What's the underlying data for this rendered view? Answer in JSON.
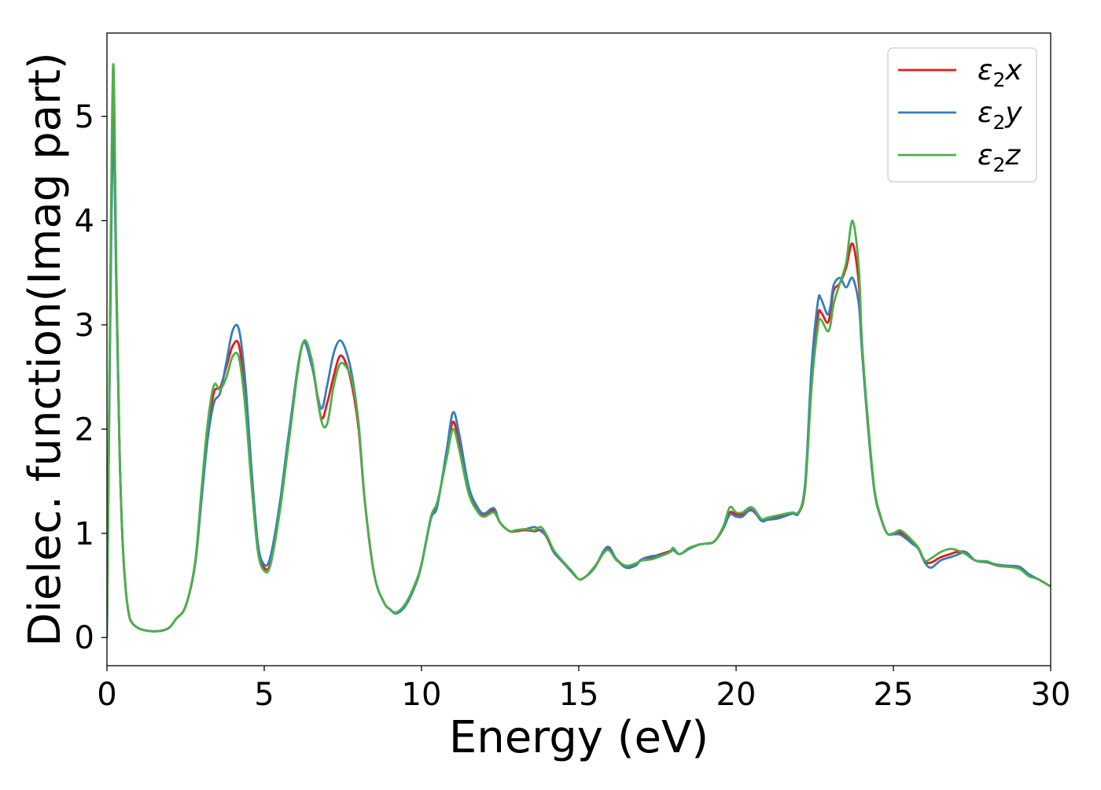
{
  "chart_data": {
    "type": "line",
    "xlabel": "Energy (eV)",
    "ylabel": "Dielec. function(Imag part)",
    "xlim": [
      0,
      30
    ],
    "ylim": [
      -0.27,
      5.8
    ],
    "xticks": [
      0,
      5,
      10,
      15,
      20,
      25,
      30
    ],
    "yticks": [
      0,
      1,
      2,
      3,
      4,
      5
    ],
    "grid": false,
    "legend_position": "top-right",
    "series": [
      {
        "name": "ε₂x",
        "legend": {
          "base": "ε",
          "sub": "2",
          "comp": "x"
        },
        "color": "#e41a1c",
        "x": [
          0,
          0.1,
          0.2,
          0.3,
          0.4,
          0.5,
          0.6,
          0.7,
          0.8,
          1.0,
          1.2,
          1.5,
          1.8,
          2.0,
          2.2,
          2.5,
          2.8,
          3.0,
          3.2,
          3.4,
          3.6,
          3.8,
          4.0,
          4.2,
          4.4,
          4.6,
          4.8,
          5.0,
          5.2,
          5.5,
          5.8,
          6.2,
          6.5,
          6.8,
          7.0,
          7.2,
          7.4,
          7.6,
          7.8,
          8.0,
          8.2,
          8.5,
          8.8,
          9.0,
          9.2,
          9.5,
          9.8,
          10.0,
          10.3,
          10.5,
          10.8,
          11.0,
          11.2,
          11.5,
          11.8,
          12.0,
          12.3,
          12.5,
          12.8,
          13.0,
          13.3,
          13.6,
          13.8,
          14.0,
          14.2,
          14.5,
          14.8,
          15.0,
          15.2,
          15.5,
          15.9,
          16.2,
          16.5,
          16.8,
          17.0,
          17.3,
          17.6,
          17.9,
          18.0,
          18.2,
          18.5,
          18.8,
          19.0,
          19.3,
          19.6,
          19.8,
          20.0,
          20.2,
          20.5,
          20.8,
          21.0,
          21.3,
          21.6,
          21.8,
          22.0,
          22.2,
          22.4,
          22.6,
          22.7,
          22.9,
          23.0,
          23.1,
          23.3,
          23.5,
          23.7,
          23.9,
          24.0,
          24.2,
          24.4,
          24.6,
          24.8,
          25.0,
          25.2,
          25.4,
          25.6,
          25.8,
          26.0,
          26.2,
          26.5,
          26.8,
          27.0,
          27.3,
          27.6,
          28.0,
          28.3,
          28.6,
          29.0,
          29.3,
          29.6,
          30.0
        ],
        "y": [
          0.0,
          3.0,
          5.28,
          3.4,
          1.8,
          0.9,
          0.45,
          0.22,
          0.14,
          0.09,
          0.07,
          0.06,
          0.07,
          0.1,
          0.18,
          0.3,
          0.7,
          1.35,
          1.95,
          2.35,
          2.4,
          2.6,
          2.8,
          2.8,
          2.3,
          1.5,
          0.85,
          0.67,
          0.72,
          1.25,
          1.95,
          2.8,
          2.65,
          2.12,
          2.25,
          2.5,
          2.7,
          2.63,
          2.4,
          2.0,
          1.3,
          0.6,
          0.34,
          0.27,
          0.24,
          0.32,
          0.5,
          0.7,
          1.15,
          1.28,
          1.75,
          2.07,
          1.85,
          1.4,
          1.22,
          1.18,
          1.22,
          1.1,
          1.02,
          1.02,
          1.03,
          1.02,
          1.03,
          0.95,
          0.82,
          0.72,
          0.62,
          0.56,
          0.58,
          0.67,
          0.85,
          0.75,
          0.68,
          0.7,
          0.75,
          0.77,
          0.8,
          0.83,
          0.85,
          0.8,
          0.85,
          0.89,
          0.9,
          0.92,
          1.05,
          1.2,
          1.18,
          1.18,
          1.22,
          1.13,
          1.14,
          1.16,
          1.18,
          1.19,
          1.2,
          1.45,
          2.5,
          3.08,
          3.12,
          3.02,
          3.12,
          3.33,
          3.4,
          3.55,
          3.78,
          3.4,
          2.8,
          2.0,
          1.4,
          1.15,
          1.0,
          1.0,
          1.01,
          0.97,
          0.92,
          0.85,
          0.73,
          0.72,
          0.77,
          0.8,
          0.82,
          0.82,
          0.74,
          0.72,
          0.69,
          0.68,
          0.67,
          0.6,
          0.56,
          0.49
        ]
      },
      {
        "name": "ε₂y",
        "legend": {
          "base": "ε",
          "sub": "2",
          "comp": "y"
        },
        "color": "#377eb8",
        "x": [
          0,
          0.1,
          0.2,
          0.3,
          0.4,
          0.5,
          0.6,
          0.7,
          0.8,
          1.0,
          1.2,
          1.5,
          1.8,
          2.0,
          2.2,
          2.5,
          2.8,
          3.0,
          3.2,
          3.4,
          3.6,
          3.8,
          4.0,
          4.2,
          4.4,
          4.6,
          4.8,
          5.0,
          5.2,
          5.5,
          5.8,
          6.2,
          6.5,
          6.8,
          7.0,
          7.2,
          7.4,
          7.6,
          7.8,
          8.0,
          8.2,
          8.5,
          8.8,
          9.0,
          9.2,
          9.5,
          9.8,
          10.0,
          10.3,
          10.5,
          10.8,
          11.0,
          11.2,
          11.5,
          11.8,
          12.0,
          12.3,
          12.5,
          12.8,
          13.0,
          13.3,
          13.6,
          13.8,
          14.0,
          14.2,
          14.5,
          14.8,
          15.0,
          15.2,
          15.5,
          15.9,
          16.2,
          16.5,
          16.8,
          17.0,
          17.3,
          17.6,
          17.9,
          18.0,
          18.2,
          18.5,
          18.8,
          19.0,
          19.3,
          19.6,
          19.8,
          20.0,
          20.2,
          20.5,
          20.8,
          21.0,
          21.3,
          21.6,
          21.8,
          22.0,
          22.2,
          22.4,
          22.6,
          22.7,
          22.9,
          23.0,
          23.1,
          23.3,
          23.5,
          23.7,
          23.9,
          24.0,
          24.2,
          24.4,
          24.6,
          24.8,
          25.0,
          25.2,
          25.4,
          25.6,
          25.8,
          26.0,
          26.2,
          26.5,
          26.8,
          27.0,
          27.3,
          27.6,
          28.0,
          28.3,
          28.6,
          29.0,
          29.3,
          29.6,
          30.0
        ],
        "y": [
          0.0,
          2.9,
          4.85,
          3.3,
          1.8,
          0.9,
          0.45,
          0.22,
          0.14,
          0.09,
          0.07,
          0.06,
          0.07,
          0.1,
          0.18,
          0.3,
          0.7,
          1.3,
          1.9,
          2.25,
          2.35,
          2.65,
          2.95,
          2.95,
          2.45,
          1.6,
          0.9,
          0.7,
          0.78,
          1.3,
          2.0,
          2.8,
          2.62,
          2.2,
          2.42,
          2.72,
          2.85,
          2.75,
          2.5,
          2.05,
          1.3,
          0.6,
          0.34,
          0.27,
          0.23,
          0.31,
          0.5,
          0.7,
          1.14,
          1.26,
          1.8,
          2.16,
          1.95,
          1.45,
          1.24,
          1.19,
          1.24,
          1.1,
          1.02,
          1.03,
          1.04,
          1.06,
          1.02,
          0.96,
          0.82,
          0.72,
          0.62,
          0.56,
          0.58,
          0.67,
          0.87,
          0.75,
          0.67,
          0.69,
          0.75,
          0.78,
          0.79,
          0.82,
          0.84,
          0.8,
          0.85,
          0.89,
          0.9,
          0.92,
          1.05,
          1.18,
          1.16,
          1.16,
          1.23,
          1.12,
          1.13,
          1.14,
          1.17,
          1.19,
          1.2,
          1.5,
          2.6,
          3.22,
          3.25,
          3.1,
          3.18,
          3.38,
          3.45,
          3.36,
          3.45,
          3.2,
          2.75,
          2.0,
          1.4,
          1.15,
          1.0,
          0.99,
          0.99,
          0.95,
          0.9,
          0.85,
          0.72,
          0.67,
          0.74,
          0.77,
          0.79,
          0.82,
          0.74,
          0.72,
          0.7,
          0.69,
          0.68,
          0.61,
          0.56,
          0.49
        ]
      },
      {
        "name": "ε₂z",
        "legend": {
          "base": "ε",
          "sub": "2",
          "comp": "z"
        },
        "color": "#4daf4a",
        "x": [
          0,
          0.1,
          0.2,
          0.3,
          0.4,
          0.5,
          0.6,
          0.7,
          0.8,
          1.0,
          1.2,
          1.5,
          1.8,
          2.0,
          2.2,
          2.5,
          2.8,
          3.0,
          3.2,
          3.4,
          3.6,
          3.8,
          4.0,
          4.2,
          4.4,
          4.6,
          4.8,
          5.0,
          5.2,
          5.5,
          5.8,
          6.2,
          6.5,
          6.8,
          7.0,
          7.2,
          7.4,
          7.6,
          7.8,
          8.0,
          8.2,
          8.5,
          8.8,
          9.0,
          9.2,
          9.5,
          9.8,
          10.0,
          10.3,
          10.5,
          10.8,
          11.0,
          11.2,
          11.5,
          11.8,
          12.0,
          12.3,
          12.5,
          12.8,
          13.0,
          13.3,
          13.6,
          13.8,
          14.0,
          14.2,
          14.5,
          14.8,
          15.0,
          15.2,
          15.5,
          15.9,
          16.2,
          16.5,
          16.8,
          17.0,
          17.3,
          17.6,
          17.9,
          18.0,
          18.2,
          18.5,
          18.8,
          19.0,
          19.3,
          19.6,
          19.8,
          20.0,
          20.2,
          20.5,
          20.8,
          21.0,
          21.3,
          21.6,
          21.8,
          22.0,
          22.2,
          22.4,
          22.6,
          22.7,
          22.9,
          23.0,
          23.1,
          23.3,
          23.5,
          23.7,
          23.9,
          24.0,
          24.2,
          24.4,
          24.6,
          24.8,
          25.0,
          25.2,
          25.4,
          25.6,
          25.8,
          26.0,
          26.2,
          26.5,
          26.8,
          27.0,
          27.3,
          27.6,
          28.0,
          28.3,
          28.6,
          29.0,
          29.3,
          29.6,
          30.0
        ],
        "y": [
          0.0,
          3.2,
          5.5,
          3.5,
          1.8,
          0.9,
          0.45,
          0.22,
          0.14,
          0.09,
          0.07,
          0.06,
          0.07,
          0.1,
          0.18,
          0.3,
          0.72,
          1.4,
          2.05,
          2.42,
          2.38,
          2.5,
          2.7,
          2.68,
          2.2,
          1.45,
          0.82,
          0.64,
          0.7,
          1.22,
          1.92,
          2.8,
          2.68,
          2.1,
          2.05,
          2.4,
          2.62,
          2.6,
          2.45,
          2.05,
          1.3,
          0.6,
          0.34,
          0.27,
          0.24,
          0.33,
          0.52,
          0.71,
          1.16,
          1.3,
          1.72,
          2.0,
          1.8,
          1.38,
          1.2,
          1.16,
          1.2,
          1.1,
          1.02,
          1.03,
          1.04,
          1.03,
          1.06,
          0.97,
          0.84,
          0.73,
          0.63,
          0.56,
          0.58,
          0.68,
          0.84,
          0.74,
          0.69,
          0.71,
          0.74,
          0.75,
          0.78,
          0.82,
          0.86,
          0.8,
          0.86,
          0.89,
          0.9,
          0.92,
          1.07,
          1.25,
          1.2,
          1.2,
          1.25,
          1.14,
          1.15,
          1.17,
          1.19,
          1.2,
          1.21,
          1.45,
          2.4,
          2.98,
          3.05,
          2.94,
          3.0,
          3.2,
          3.4,
          3.6,
          4.0,
          3.55,
          2.85,
          2.05,
          1.42,
          1.16,
          1.0,
          1.0,
          1.03,
          0.99,
          0.93,
          0.86,
          0.74,
          0.76,
          0.82,
          0.85,
          0.84,
          0.8,
          0.74,
          0.73,
          0.69,
          0.68,
          0.66,
          0.59,
          0.56,
          0.49
        ]
      }
    ]
  }
}
